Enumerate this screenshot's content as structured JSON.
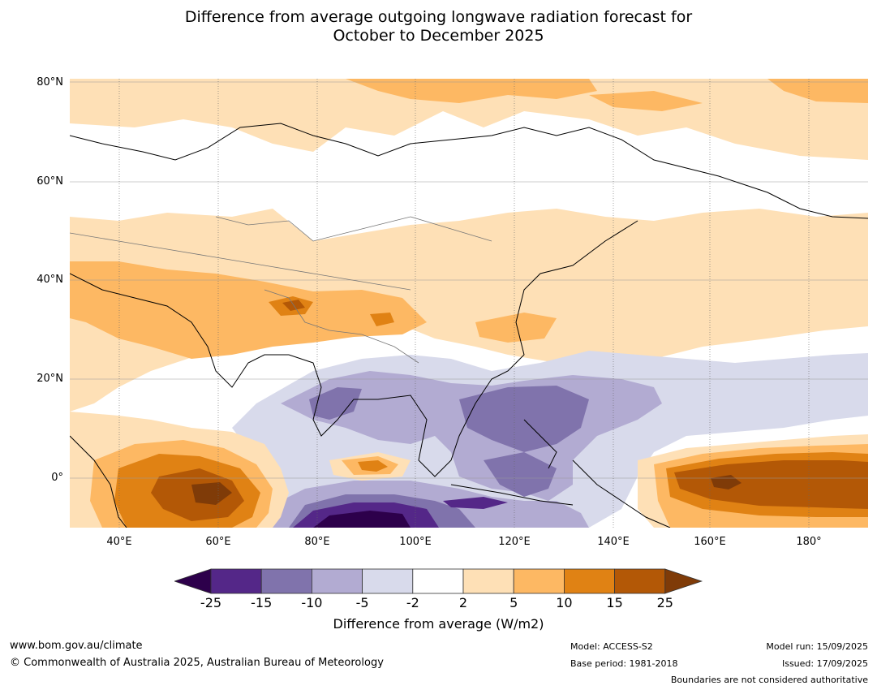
{
  "title": {
    "line1": "Difference from average outgoing longwave radiation forecast for",
    "line2": "October to December 2025"
  },
  "map": {
    "lat_labels": [
      "80°N",
      "60°N",
      "40°N",
      "20°N",
      "0°"
    ],
    "lon_labels": [
      "40°E",
      "60°E",
      "80°E",
      "100°E",
      "120°E",
      "140°E",
      "160°E",
      "180°"
    ],
    "extent": {
      "lon_min": 30,
      "lon_max": 191,
      "lat_min": -10,
      "lat_max": 80
    }
  },
  "colorbar": {
    "ticks": [
      "-25",
      "-15",
      "-10",
      "-5",
      "-2",
      "2",
      "5",
      "10",
      "15",
      "25"
    ],
    "colors": [
      "#2d004b",
      "#542788",
      "#8073ac",
      "#b2abd2",
      "#d8daeb",
      "#ffffff",
      "#fee0b6",
      "#fdb863",
      "#e08214",
      "#b35806",
      "#7f3b08"
    ],
    "label": "Difference from average (W/m2)"
  },
  "footer": {
    "website": "www.bom.gov.au/climate",
    "copyright": "© Commonwealth of Australia 2025, Australian Bureau of Meteorology",
    "model": "Model: ACCESS-S2",
    "base_period": "Base period: 1981-2018",
    "model_run": "Model run: 15/09/2025",
    "issued": "Issued: 17/09/2025",
    "disclaimer": "Boundaries are not considered authoritative"
  }
}
